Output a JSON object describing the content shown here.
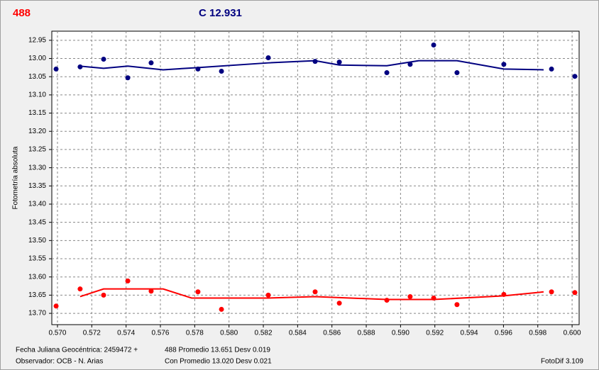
{
  "chart_data": {
    "type": "scatter",
    "y_label": "Fotometría absoluta",
    "y_inverted": true,
    "grid": true,
    "xlim": [
      0.56967,
      0.60041
    ],
    "ylim": [
      12.925,
      13.731
    ],
    "xticks": [
      {
        "value": 0.57,
        "label": "0.570"
      },
      {
        "value": 0.572,
        "label": "0.572"
      },
      {
        "value": 0.574,
        "label": "0.574"
      },
      {
        "value": 0.576,
        "label": "0.576"
      },
      {
        "value": 0.578,
        "label": "0.578"
      },
      {
        "value": 0.58,
        "label": "0.580"
      },
      {
        "value": 0.582,
        "label": "0.582"
      },
      {
        "value": 0.584,
        "label": "0.584"
      },
      {
        "value": 0.586,
        "label": "0.586"
      },
      {
        "value": 0.588,
        "label": "0.588"
      },
      {
        "value": 0.59,
        "label": "0.590"
      },
      {
        "value": 0.592,
        "label": "0.592"
      },
      {
        "value": 0.594,
        "label": "0.594"
      },
      {
        "value": 0.596,
        "label": "0.596"
      },
      {
        "value": 0.598,
        "label": "0.598"
      },
      {
        "value": 0.6,
        "label": "0.600"
      }
    ],
    "yticks": [
      12.95,
      {
        "value": 13.0,
        "label": "13.00"
      },
      13.05,
      {
        "value": 13.1,
        "label": "13.10"
      },
      13.15,
      {
        "value": 13.2,
        "label": "13.20"
      },
      13.25,
      {
        "value": 13.3,
        "label": "13.30"
      },
      13.35,
      {
        "value": 13.4,
        "label": "13.40"
      },
      13.45,
      {
        "value": 13.5,
        "label": "13.50"
      },
      13.55,
      {
        "value": 13.6,
        "label": "13.60"
      },
      13.65,
      {
        "value": 13.7,
        "label": "13.70"
      }
    ],
    "series": [
      {
        "name": "488",
        "color": "#ff0000",
        "x": [
          0.56992,
          0.57132,
          0.57269,
          0.5741,
          0.57546,
          0.57819,
          0.57956,
          0.58229,
          0.58502,
          0.58643,
          0.5892,
          0.59056,
          0.59193,
          0.59329,
          0.59602,
          0.5988,
          0.60016
        ],
        "values": [
          13.68,
          13.633,
          13.65,
          13.611,
          13.639,
          13.641,
          13.689,
          13.65,
          13.641,
          13.672,
          13.664,
          13.654,
          13.658,
          13.676,
          13.648,
          13.641,
          13.643
        ],
        "trend": {
          "x": [
            0.57132,
            0.57269,
            0.57616,
            0.57782,
            0.58229,
            0.58502,
            0.5892,
            0.59193,
            0.59602,
            0.59834
          ],
          "values": [
            13.654,
            13.633,
            13.633,
            13.658,
            13.658,
            13.654,
            13.662,
            13.662,
            13.652,
            13.641
          ]
        }
      },
      {
        "name": "C 12.931",
        "color": "#000080",
        "x": [
          0.56992,
          0.57132,
          0.57269,
          0.5741,
          0.57546,
          0.57819,
          0.57956,
          0.58229,
          0.58502,
          0.58643,
          0.5892,
          0.59056,
          0.59193,
          0.59329,
          0.59602,
          0.5988,
          0.60016
        ],
        "values": [
          13.029,
          13.023,
          13.002,
          13.053,
          13.012,
          13.029,
          13.035,
          12.998,
          13.008,
          13.01,
          13.039,
          13.016,
          12.963,
          13.039,
          13.016,
          13.029,
          13.049
        ],
        "trend": {
          "x": [
            0.57132,
            0.57269,
            0.5741,
            0.57616,
            0.57819,
            0.58229,
            0.58502,
            0.58643,
            0.5892,
            0.59106,
            0.59329,
            0.59602,
            0.59834
          ],
          "values": [
            13.021,
            13.027,
            13.021,
            13.031,
            13.025,
            13.012,
            13.006,
            13.018,
            13.02,
            13.006,
            13.006,
            13.029,
            13.031
          ]
        }
      }
    ],
    "footer": {
      "date": "Fecha Juliana Geocéntrica: 2459472 +",
      "observer": "Observador: OCB - N. Arias",
      "stats_1": "488 Promedio 13.651 Desv 0.019",
      "stats_2": "Con Promedio 13.020 Desv 0.021",
      "version": "FotoDif 3.109"
    }
  }
}
